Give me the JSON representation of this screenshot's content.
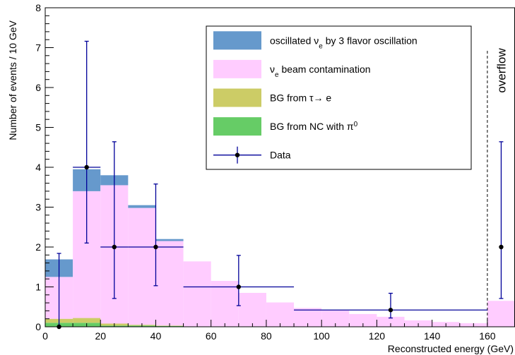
{
  "chart_data": {
    "type": "bar",
    "stacked": true,
    "xlabel": "Reconstructed energy (GeV)",
    "ylabel": "Number of events / 10 GeV",
    "xlim": [
      0,
      170
    ],
    "ylim": [
      0,
      8
    ],
    "x_ticks": [
      0,
      20,
      40,
      60,
      80,
      100,
      120,
      140,
      160
    ],
    "y_ticks": [
      0,
      1,
      2,
      3,
      4,
      5,
      6,
      7,
      8
    ],
    "bin_edges": [
      0,
      10,
      20,
      30,
      40,
      50,
      60,
      70,
      80,
      90,
      100,
      110,
      120,
      130,
      140,
      150,
      160
    ],
    "overflow_bin": [
      160,
      170
    ],
    "overflow_label": "overflow",
    "series": [
      {
        "key": "nc",
        "name": "BG from NC with π0",
        "color": "#66cc66",
        "values": [
          0.1,
          0.1,
          0.03,
          0.03,
          0.02,
          0.01,
          0.01,
          0.01,
          0.0,
          0.0,
          0.0,
          0.0,
          0.0,
          0.0,
          0.0,
          0.0
        ],
        "overflow": 0.0
      },
      {
        "key": "tau",
        "name": "BG from τ→ e",
        "color": "#cccc66",
        "values": [
          0.1,
          0.12,
          0.05,
          0.02,
          0.01,
          0.0,
          0.0,
          0.0,
          0.0,
          0.0,
          0.0,
          0.0,
          0.0,
          0.0,
          0.0,
          0.0
        ],
        "overflow": 0.0
      },
      {
        "key": "beam",
        "name": "νe beam contamination",
        "color": "#ffccff",
        "values": [
          1.05,
          3.18,
          3.47,
          2.93,
          2.12,
          1.63,
          1.14,
          0.84,
          0.61,
          0.47,
          0.41,
          0.32,
          0.25,
          0.16,
          0.12,
          0.09
        ],
        "overflow": 0.65
      },
      {
        "key": "osc",
        "name": "oscillated νe by 3 flavor oscillation",
        "color": "#6699cc",
        "values": [
          0.44,
          0.55,
          0.25,
          0.07,
          0.05,
          0.0,
          0.0,
          0.0,
          0.0,
          0.0,
          0.0,
          0.0,
          0.0,
          0.0,
          0.0,
          0.0
        ],
        "overflow": 0.0
      }
    ],
    "data_points": {
      "name": "Data",
      "color": "#000099",
      "points": [
        {
          "x": 5,
          "y": 0,
          "xlo": 5,
          "xhi": 5,
          "ylo": 0,
          "yhi": 1.84
        },
        {
          "x": 15,
          "y": 4,
          "xlo": 10,
          "xhi": 20,
          "ylo": 2.1,
          "yhi": 7.16
        },
        {
          "x": 25,
          "y": 2,
          "xlo": 20,
          "xhi": 30,
          "ylo": 0.71,
          "yhi": 4.64
        },
        {
          "x": 40,
          "y": 2,
          "xlo": 30,
          "xhi": 50,
          "ylo": 1.03,
          "yhi": 3.58
        },
        {
          "x": 70,
          "y": 1,
          "xlo": 50,
          "xhi": 90,
          "ylo": 0.53,
          "yhi": 1.79
        },
        {
          "x": 125,
          "y": 0.42,
          "xlo": 90,
          "xhi": 160,
          "ylo": 0.22,
          "yhi": 0.84
        },
        {
          "x": 165,
          "y": 2,
          "xlo": 165,
          "xhi": 165,
          "ylo": 0.71,
          "yhi": 4.64
        }
      ]
    },
    "legend": {
      "placement": "top-right",
      "entries": [
        {
          "key": "osc",
          "parts": [
            {
              "t": "oscillated ν"
            },
            {
              "t": "e",
              "sub": true
            },
            {
              "t": " by 3 flavor oscillation"
            }
          ]
        },
        {
          "key": "beam",
          "parts": [
            {
              "t": "ν"
            },
            {
              "t": "e",
              "sub": true
            },
            {
              "t": " beam contamination"
            }
          ]
        },
        {
          "key": "tau",
          "parts": [
            {
              "t": "BG from τ→ e"
            }
          ]
        },
        {
          "key": "nc",
          "parts": [
            {
              "t": "BG from NC with π"
            },
            {
              "t": "0",
              "sup": true
            }
          ]
        },
        {
          "key": "data",
          "parts": [
            {
              "t": "Data"
            }
          ]
        }
      ]
    }
  }
}
